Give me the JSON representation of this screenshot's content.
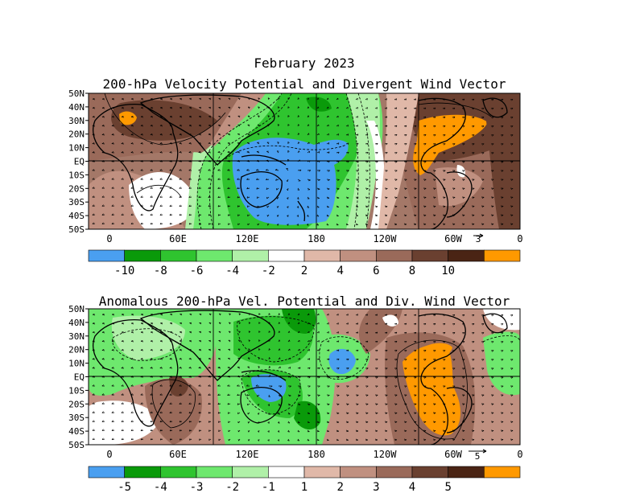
{
  "figure": {
    "main_title": "February 2023",
    "panel1_title": "200-hPa Velocity Potential and Divergent Wind Vector",
    "panel2_title": "Anomalous 200-hPa Vel. Potential and Div. Wind Vector"
  },
  "axes": {
    "lat_labels": [
      "50N",
      "40N",
      "30N",
      "20N",
      "10N",
      "EQ",
      "10S",
      "20S",
      "30S",
      "40S",
      "50S"
    ],
    "lon_labels": [
      "0",
      "60E",
      "120E",
      "180",
      "120W",
      "60W",
      "0"
    ]
  },
  "panel1": {
    "reference_vector_label": "3",
    "colorbar": {
      "colors": [
        "#4a9ff0",
        "#0a9a0a",
        "#2fc42f",
        "#6ee86e",
        "#b0f0a8",
        "#ffffff",
        "#e0b8a8",
        "#c09080",
        "#9a6a5a",
        "#6a4030",
        "#4a2414",
        "#ff9900"
      ],
      "labels": [
        "-10",
        "-8",
        "-6",
        "-4",
        "-2",
        "2",
        "4",
        "6",
        "8",
        "10"
      ]
    }
  },
  "panel2": {
    "reference_vector_label": "5",
    "colorbar": {
      "colors": [
        "#4a9ff0",
        "#0a9a0a",
        "#2fc42f",
        "#6ee86e",
        "#b0f0a8",
        "#ffffff",
        "#e0b8a8",
        "#c09080",
        "#9a6a5a",
        "#6a4030",
        "#4a2414",
        "#ff9900"
      ],
      "labels": [
        "-5",
        "-4",
        "-3",
        "-2",
        "-1",
        "1",
        "2",
        "3",
        "4",
        "5"
      ]
    }
  }
}
